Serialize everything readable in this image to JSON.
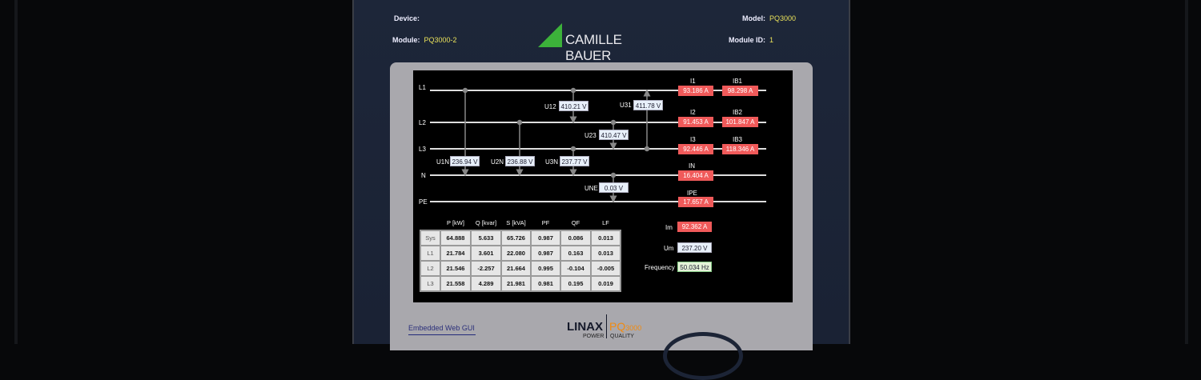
{
  "header": {
    "device_label": "Device:",
    "device_value": "",
    "model_label": "Model:",
    "model_value": "PQ3000",
    "module_label": "Module:",
    "module_value": "PQ3000-2",
    "module_id_label": "Module ID:",
    "module_id_value": "1",
    "brand": "CAMILLE BAUER"
  },
  "diagram": {
    "lines": [
      "L1",
      "L2",
      "L3",
      "N",
      "PE"
    ],
    "voltages": {
      "U12": "410.21 V",
      "U23": "410.47 V",
      "U31": "411.78 V",
      "U1N": "236.94 V",
      "U2N": "236.88 V",
      "U3N": "237.77 V",
      "UNE": "0.03 V"
    },
    "currents": {
      "I1": "93.186 A",
      "IB1": "98.298 A",
      "I2": "91.453 A",
      "IB2": "101.847 A",
      "I3": "92.446 A",
      "IB3": "118.346 A",
      "IN": "16.404 A",
      "IPE": "17.657 A"
    }
  },
  "power_table": {
    "columns": [
      "",
      "P [kW]",
      "Q [kvar]",
      "S [kVA]",
      "PF",
      "QF",
      "LF"
    ],
    "rows": [
      [
        "Sys",
        "64.888",
        "5.633",
        "65.726",
        "0.987",
        "0.086",
        "0.013"
      ],
      [
        "L1",
        "21.784",
        "3.601",
        "22.080",
        "0.987",
        "0.163",
        "0.013"
      ],
      [
        "L2",
        "21.546",
        "-2.257",
        "21.664",
        "0.995",
        "-0.104",
        "-0.005"
      ],
      [
        "L3",
        "21.558",
        "4.289",
        "21.981",
        "0.981",
        "0.195",
        "0.019"
      ]
    ]
  },
  "summary": {
    "im_label": "Im",
    "im_value": "92.362 A",
    "um_label": "Um",
    "um_value": "237.20 V",
    "freq_label": "Frequency",
    "freq_value": "50.034 Hz"
  },
  "footer": {
    "link": "Embedded Web GUI",
    "logo_linax": "LINAX",
    "logo_pq": "PQ",
    "logo_pq_num": "3000",
    "logo_power": "POWER",
    "logo_quality": "QUALITY"
  },
  "colors": {
    "current_box": "#f05a5a",
    "voltage_box": "#e8f0fa",
    "frequency_box": "#e4f2d8",
    "model_text": "#e8e05a",
    "brand_green": "#3cb23a",
    "pq_orange": "#f08a10"
  }
}
